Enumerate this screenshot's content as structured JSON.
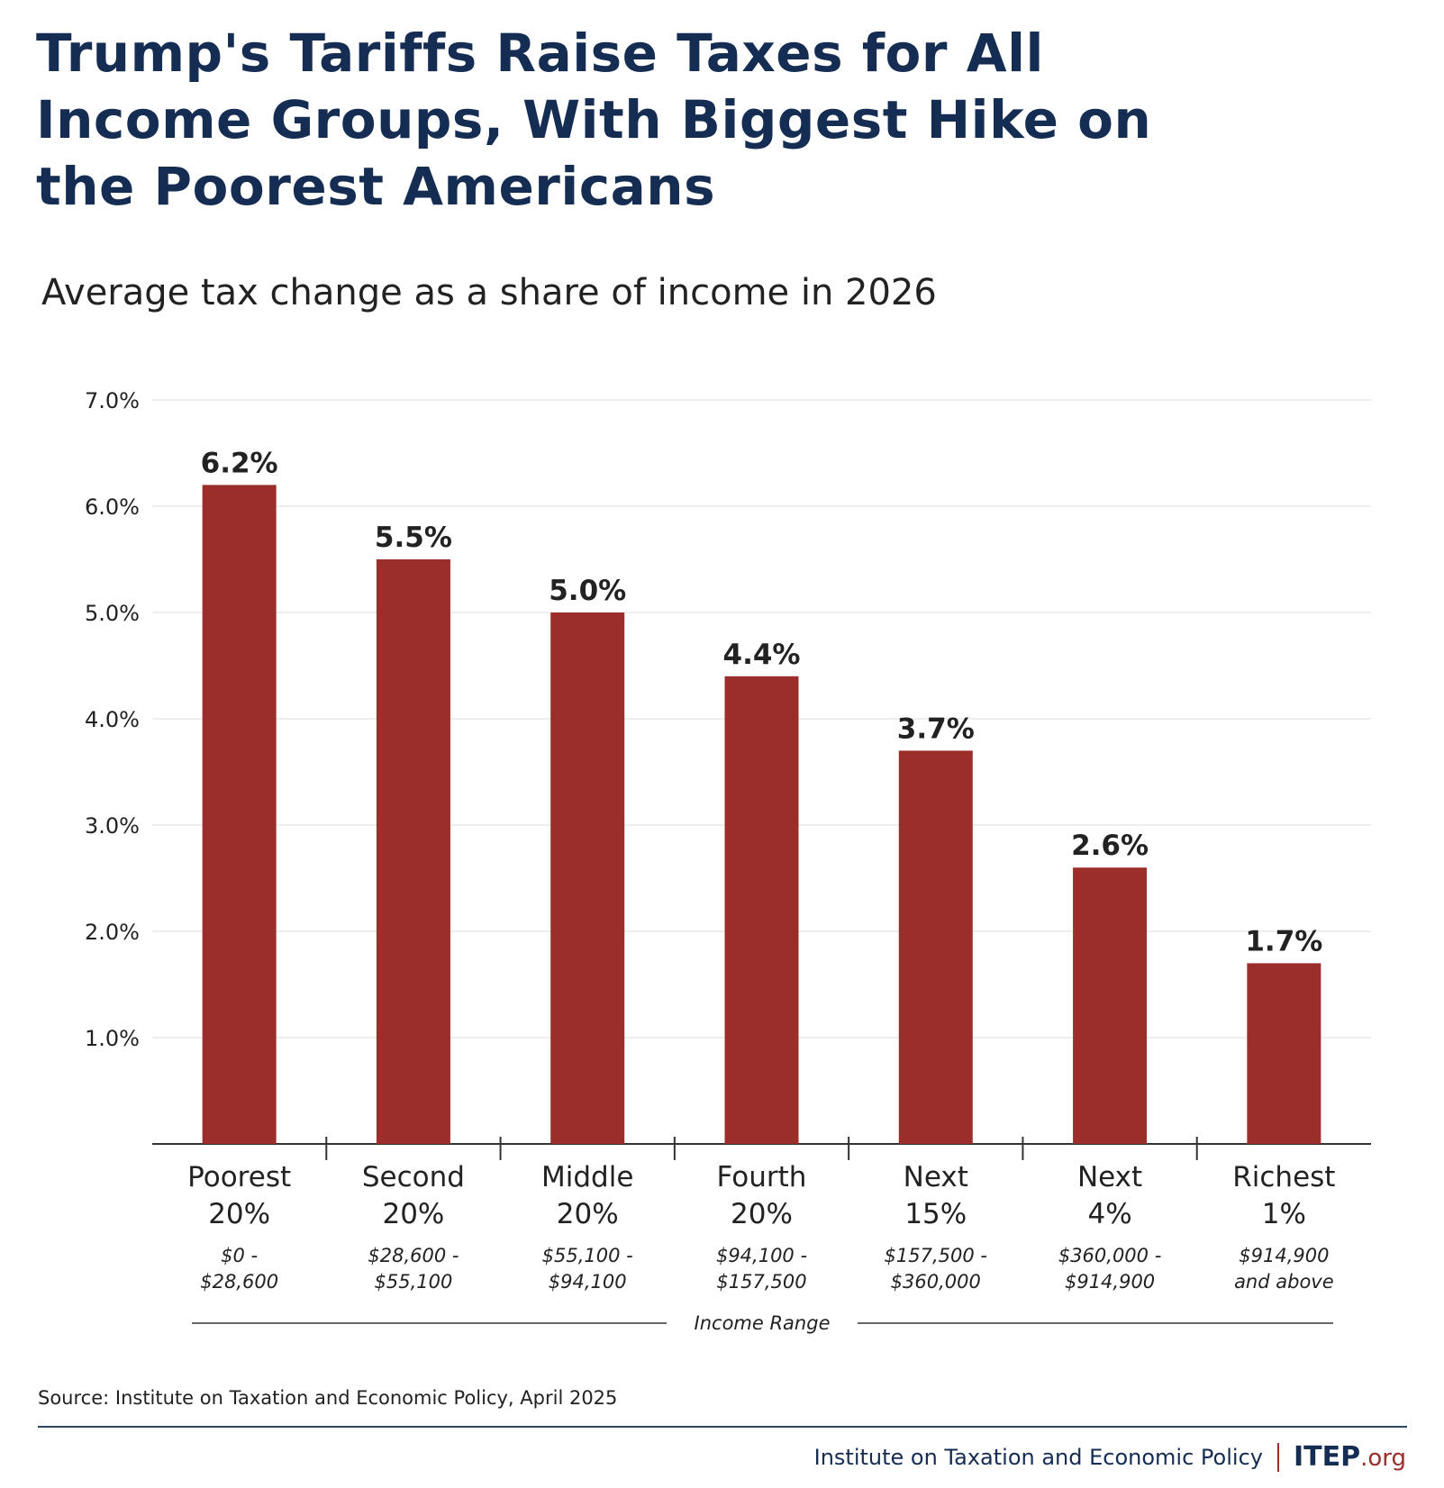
{
  "title": "Trump's Tariffs Raise Taxes for All Income Groups, With Biggest Hike on the Poorest Americans",
  "subtitle": "Average tax change as a share of income in 2026",
  "source": "Source: Institute on Taxation and Economic Policy, April 2025",
  "footer": {
    "org_name": "Institute on Taxation and Economic Policy",
    "logo_main": "ITEP",
    "logo_suffix": ".org"
  },
  "colors": {
    "bar": "#9b2d2b",
    "title": "#152d52"
  },
  "chart_data": {
    "type": "bar",
    "categories": [
      {
        "line1": "Poorest",
        "line2": "20%",
        "range1": "$0 -",
        "range2": "$28,600"
      },
      {
        "line1": "Second",
        "line2": "20%",
        "range1": "$28,600 -",
        "range2": "$55,100"
      },
      {
        "line1": "Middle",
        "line2": "20%",
        "range1": "$55,100 -",
        "range2": "$94,100"
      },
      {
        "line1": "Fourth",
        "line2": "20%",
        "range1": "$94,100 -",
        "range2": "$157,500"
      },
      {
        "line1": "Next",
        "line2": "15%",
        "range1": "$157,500 -",
        "range2": "$360,000"
      },
      {
        "line1": "Next",
        "line2": "4%",
        "range1": "$360,000 -",
        "range2": "$914,900"
      },
      {
        "line1": "Richest",
        "line2": "1%",
        "range1": "$914,900",
        "range2": "and above"
      }
    ],
    "values": [
      6.2,
      5.5,
      5.0,
      4.4,
      3.7,
      2.6,
      1.7
    ],
    "data_labels": [
      "6.2%",
      "5.5%",
      "5.0%",
      "4.4%",
      "3.7%",
      "2.6%",
      "1.7%"
    ],
    "yticks": [
      1,
      2,
      3,
      4,
      5,
      6,
      7
    ],
    "ytick_labels": [
      "1.0%",
      "2.0%",
      "3.0%",
      "4.0%",
      "5.0%",
      "6.0%",
      "7.0%"
    ],
    "ylim": [
      0,
      7
    ],
    "xlabel": "Income Range",
    "grid": true
  }
}
